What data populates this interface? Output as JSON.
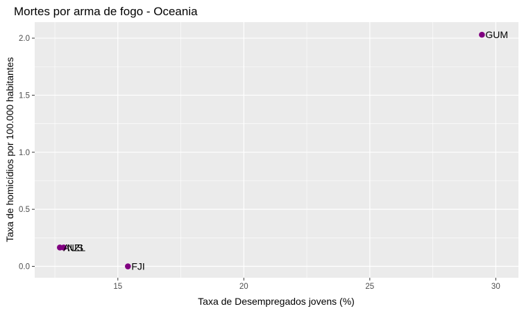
{
  "chart_data": {
    "type": "scatter",
    "title": "Mortes por arma de fogo - Oceania",
    "xlabel": "Taxa de Desempregados jovens (%)",
    "ylabel": "Taxa de homicídios por 100.000 habitantes",
    "xlim": [
      11.7,
      30.9
    ],
    "ylim": [
      -0.1,
      2.14
    ],
    "x_ticks": [
      15,
      20,
      25,
      30
    ],
    "x_tick_labels": [
      "15",
      "20",
      "25",
      "30"
    ],
    "y_ticks": [
      0.0,
      0.5,
      1.0,
      1.5,
      2.0
    ],
    "y_tick_labels": [
      "0.0",
      "0.5",
      "1.0",
      "1.5",
      "2.0"
    ],
    "grid": true,
    "panel_background": "#ebebeb",
    "grid_color": "#ffffff",
    "point_color": "#800080",
    "points": [
      {
        "label": "GUM",
        "x": 29.45,
        "y": 2.03
      },
      {
        "label": "FJI",
        "x": 15.4,
        "y": 0.0
      },
      {
        "label": "AUS",
        "x": 12.7,
        "y": 0.165
      },
      {
        "label": "NZL",
        "x": 12.85,
        "y": 0.165
      }
    ]
  }
}
